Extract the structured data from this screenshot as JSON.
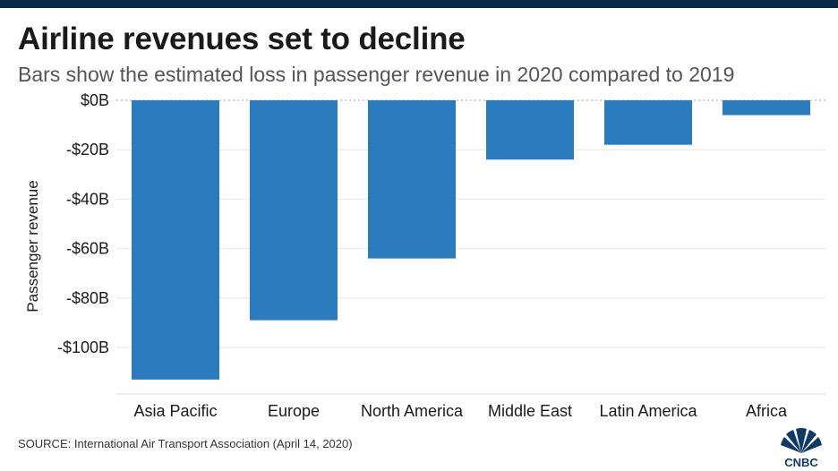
{
  "header": {
    "title": "Airline revenues set to decline",
    "subtitle": "Bars show the estimated loss in passenger revenue in 2020 compared to 2019"
  },
  "footer": {
    "source": "SOURCE: International Air Transport Association (April 14, 2020)",
    "logo_text": "CNBC"
  },
  "colors": {
    "bar": "#2b7bbf",
    "grid": "#e6e6e6",
    "text": "#1a1a1a",
    "topbar": "#0a2a4a"
  },
  "chart_data": {
    "type": "bar",
    "title": "Airline revenues set to decline",
    "subtitle": "Bars show the estimated loss in passenger revenue in 2020 compared to 2019",
    "xlabel": "",
    "ylabel": "Passenger revenue",
    "categories": [
      "Asia Pacific",
      "Europe",
      "North America",
      "Middle East",
      "Latin America",
      "Africa"
    ],
    "values": [
      -113,
      -89,
      -64,
      -24,
      -18,
      -6
    ],
    "unit": "billion USD",
    "ylim": [
      -120,
      0
    ],
    "yticks": [
      0,
      -20,
      -40,
      -60,
      -80,
      -100
    ],
    "ytick_labels": [
      "$0B",
      "-$20B",
      "-$40B",
      "-$60B",
      "-$80B",
      "-$100B"
    ],
    "grid": true
  }
}
